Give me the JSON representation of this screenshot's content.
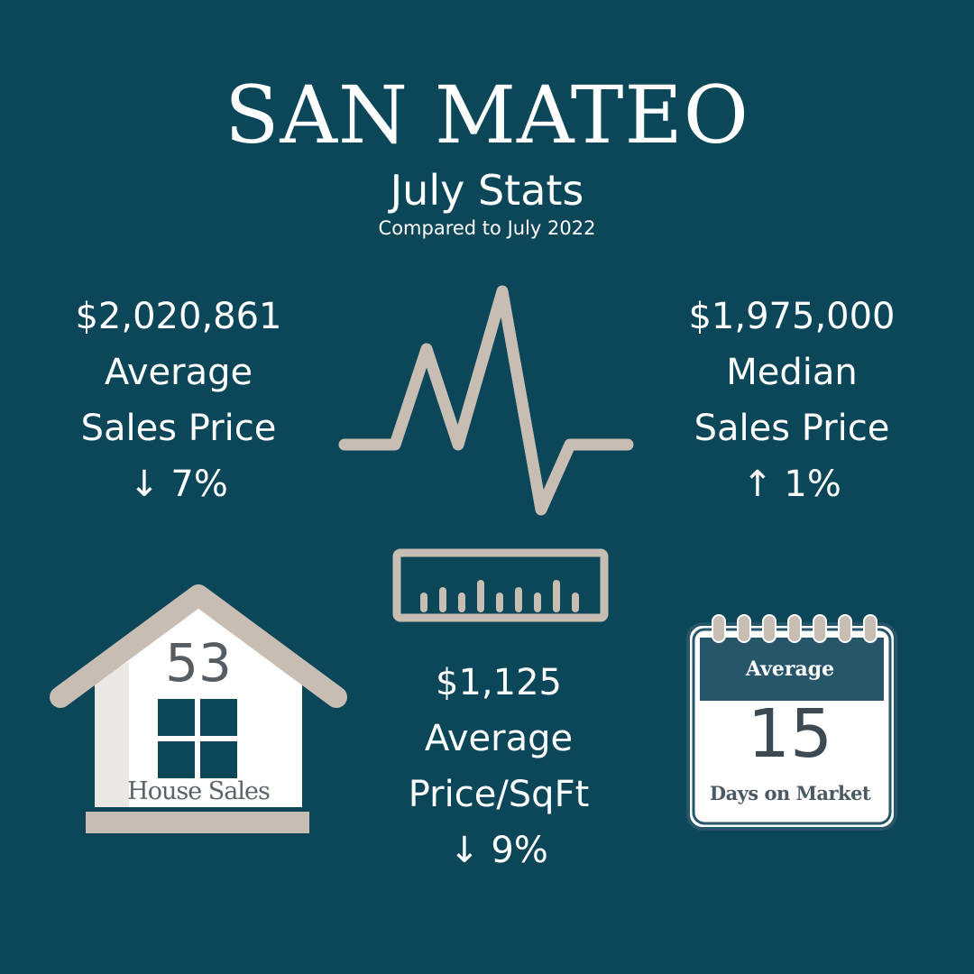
{
  "header": {
    "title": "SAN MATEO",
    "subtitle": "July Stats",
    "comparison": "Compared to July 2022"
  },
  "stats": {
    "average_sales_price": {
      "value": "$2,020,861",
      "label_line1": "Average",
      "label_line2": "Sales Price",
      "change": "↓ 7%"
    },
    "median_sales_price": {
      "value": "$1,975,000",
      "label_line1": "Median",
      "label_line2": "Sales Price",
      "change": "↑ 1%"
    },
    "average_price_sqft": {
      "value": "$1,125",
      "label_line1": "Average",
      "label_line2": "Price/SqFt",
      "change": "↓ 9%"
    },
    "house_sales": {
      "value": "53",
      "label": "House Sales"
    },
    "days_on_market": {
      "header": "Average",
      "value": "15",
      "label": "Days on Market"
    }
  },
  "colors": {
    "background": "#0b4659",
    "icon_gray": "#c7bdb3",
    "calendar_header": "#27566b",
    "text": "#ffffff"
  },
  "icons": [
    "heartbeat-line-icon",
    "ruler-icon",
    "house-icon",
    "calendar-icon"
  ]
}
